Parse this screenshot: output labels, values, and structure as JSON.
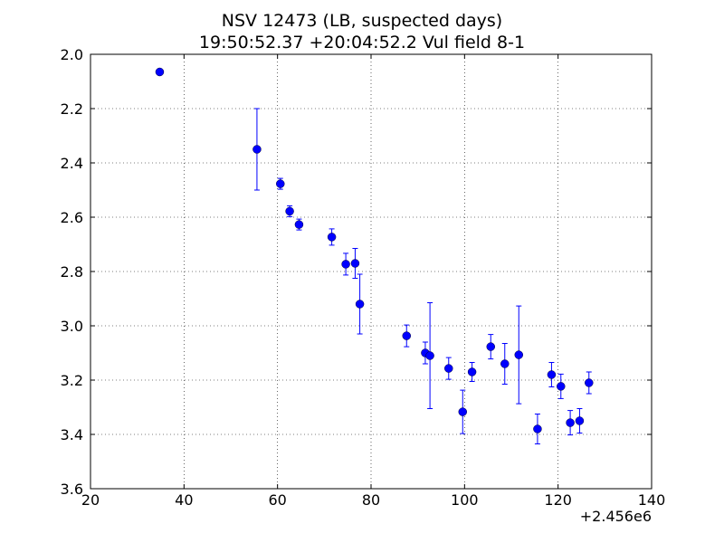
{
  "chart_data": {
    "type": "scatter",
    "title": "NSV 12473 (LB, suspected days)",
    "subtitle": "19:50:52.37 +20:04:52.2 Vul field 8-1",
    "x_offset_label": "+2.456e6",
    "xlim": [
      20,
      140
    ],
    "ylim": [
      2.0,
      3.6
    ],
    "y_inverted": true,
    "grid": true,
    "x_ticks": [
      20,
      40,
      60,
      80,
      100,
      120,
      140
    ],
    "x_tick_labels": [
      "20",
      "40",
      "60",
      "80",
      "100",
      "120",
      "140"
    ],
    "y_ticks": [
      2.0,
      2.2,
      2.4,
      2.6,
      2.8,
      3.0,
      3.2,
      3.4,
      3.6
    ],
    "y_tick_labels": [
      "2.0",
      "2.2",
      "2.4",
      "2.6",
      "2.8",
      "3.0",
      "3.2",
      "3.4",
      "3.6"
    ],
    "marker_color": "#0000ff",
    "errorbar_color": "#0000ff",
    "points": [
      {
        "x": 34.8,
        "y": 2.065,
        "err": 0.01
      },
      {
        "x": 55.6,
        "y": 2.35,
        "err": 0.15
      },
      {
        "x": 60.6,
        "y": 2.477,
        "err": 0.02
      },
      {
        "x": 62.6,
        "y": 2.578,
        "err": 0.02
      },
      {
        "x": 64.6,
        "y": 2.627,
        "err": 0.02
      },
      {
        "x": 71.6,
        "y": 2.673,
        "err": 0.03
      },
      {
        "x": 74.6,
        "y": 2.773,
        "err": 0.04
      },
      {
        "x": 76.6,
        "y": 2.77,
        "err": 0.055
      },
      {
        "x": 77.6,
        "y": 2.92,
        "err": 0.11
      },
      {
        "x": 87.6,
        "y": 3.037,
        "err": 0.04
      },
      {
        "x": 91.6,
        "y": 3.1,
        "err": 0.04
      },
      {
        "x": 92.6,
        "y": 3.11,
        "err": 0.195
      },
      {
        "x": 96.6,
        "y": 3.157,
        "err": 0.04
      },
      {
        "x": 99.6,
        "y": 3.317,
        "err": 0.08
      },
      {
        "x": 101.6,
        "y": 3.17,
        "err": 0.035
      },
      {
        "x": 105.6,
        "y": 3.077,
        "err": 0.045
      },
      {
        "x": 108.6,
        "y": 3.14,
        "err": 0.075
      },
      {
        "x": 111.6,
        "y": 3.107,
        "err": 0.18
      },
      {
        "x": 115.6,
        "y": 3.38,
        "err": 0.055
      },
      {
        "x": 118.6,
        "y": 3.18,
        "err": 0.045
      },
      {
        "x": 120.6,
        "y": 3.223,
        "err": 0.045
      },
      {
        "x": 122.6,
        "y": 3.357,
        "err": 0.045
      },
      {
        "x": 124.6,
        "y": 3.35,
        "err": 0.045
      },
      {
        "x": 126.6,
        "y": 3.21,
        "err": 0.04
      }
    ]
  }
}
